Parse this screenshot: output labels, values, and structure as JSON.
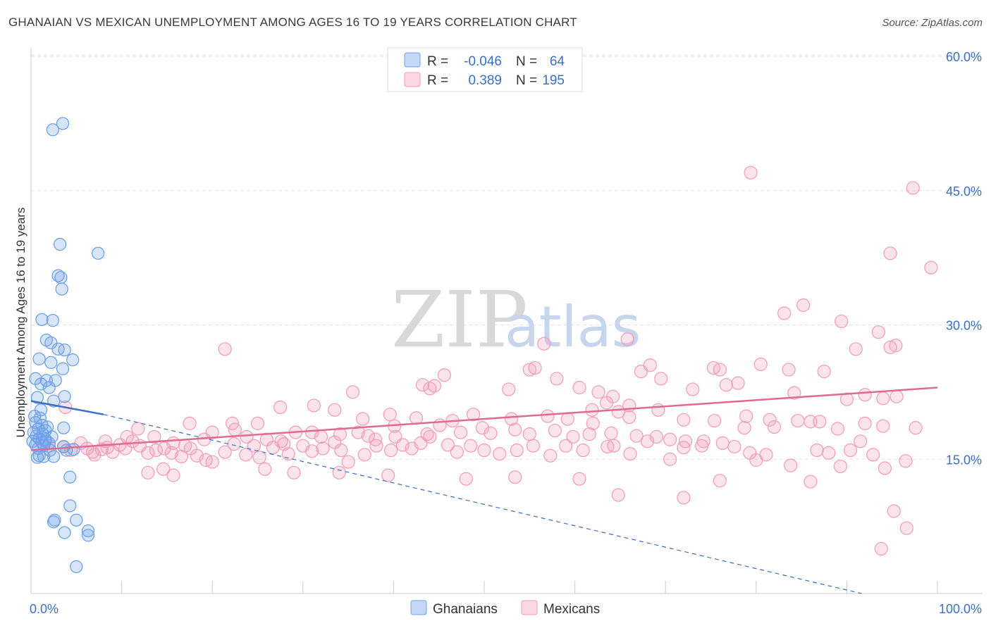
{
  "header": {
    "title": "GHANAIAN VS MEXICAN UNEMPLOYMENT AMONG AGES 16 TO 19 YEARS CORRELATION CHART",
    "source": "Source: ZipAtlas.com"
  },
  "watermark": {
    "zip": "ZIP",
    "atlas": "atlas"
  },
  "legend_top": {
    "rows": [
      {
        "r_label": "R =",
        "r_value": "-0.046",
        "n_label": "N =",
        "n_value": "64"
      },
      {
        "r_label": "R =",
        "r_value": "0.389",
        "n_label": "N =",
        "n_value": "195"
      }
    ]
  },
  "colors": {
    "ghanaian": "#6fa1e8",
    "ghanaian_line": "#3b6fc4",
    "mexican": "#f29ab8",
    "mexican_line": "#e06a94",
    "axis_text": "#3b6fc4",
    "grid": "#e3e3e3"
  },
  "chart_data": {
    "type": "scatter",
    "title": "GHANAIAN VS MEXICAN UNEMPLOYMENT AMONG AGES 16 TO 19 YEARS CORRELATION CHART",
    "xlabel": "",
    "ylabel": "Unemployment Among Ages 16 to 19 years",
    "xlim": [
      0,
      100
    ],
    "ylim": [
      0,
      60
    ],
    "x_tick_labels": [
      "0.0%",
      "100.0%"
    ],
    "y_ticks": [
      15,
      30,
      45,
      60
    ],
    "y_tick_labels": [
      "15.0%",
      "30.0%",
      "45.0%",
      "60.0%"
    ],
    "grid": true,
    "legend": "top-center",
    "series": [
      {
        "name": "Ghanaians",
        "r": -0.046,
        "n": 64,
        "trend_solid": [
          [
            0,
            21.5
          ],
          [
            8,
            20.0
          ]
        ],
        "trend_dashed": [
          [
            8,
            20.0
          ],
          [
            100,
            -2.0
          ]
        ],
        "points": [
          [
            3.5,
            52.5
          ],
          [
            2.4,
            51.8
          ],
          [
            3.2,
            39.0
          ],
          [
            7.4,
            38.0
          ],
          [
            3.0,
            35.5
          ],
          [
            3.3,
            35.3
          ],
          [
            3.4,
            34.0
          ],
          [
            1.2,
            30.6
          ],
          [
            2.4,
            30.5
          ],
          [
            1.7,
            28.3
          ],
          [
            2.2,
            28.0
          ],
          [
            3.0,
            27.3
          ],
          [
            3.7,
            27.2
          ],
          [
            0.9,
            26.2
          ],
          [
            4.6,
            26.1
          ],
          [
            2.2,
            25.8
          ],
          [
            3.5,
            25.1
          ],
          [
            0.5,
            24.0
          ],
          [
            1.7,
            23.8
          ],
          [
            2.7,
            23.8
          ],
          [
            1.1,
            23.4
          ],
          [
            2.0,
            23.0
          ],
          [
            3.7,
            22.0
          ],
          [
            0.7,
            21.9
          ],
          [
            2.5,
            21.5
          ],
          [
            1.1,
            20.5
          ],
          [
            0.4,
            19.8
          ],
          [
            1.0,
            19.6
          ],
          [
            0.5,
            19.1
          ],
          [
            1.2,
            18.8
          ],
          [
            1.8,
            18.6
          ],
          [
            0.8,
            18.4
          ],
          [
            3.6,
            18.5
          ],
          [
            1.6,
            18.2
          ],
          [
            0.3,
            18.0
          ],
          [
            1.3,
            17.8
          ],
          [
            0.6,
            17.6
          ],
          [
            2.3,
            17.5
          ],
          [
            0.9,
            17.3
          ],
          [
            1.6,
            17.2
          ],
          [
            0.2,
            17.0
          ],
          [
            1.2,
            16.9
          ],
          [
            2.0,
            16.8
          ],
          [
            0.5,
            16.6
          ],
          [
            1.4,
            16.5
          ],
          [
            3.6,
            16.4
          ],
          [
            0.8,
            16.2
          ],
          [
            2.1,
            16.0
          ],
          [
            4.7,
            16.1
          ],
          [
            3.9,
            16.0
          ],
          [
            1.4,
            15.3
          ],
          [
            0.7,
            15.2
          ],
          [
            0.9,
            15.4
          ],
          [
            2.5,
            15.3
          ],
          [
            4.3,
            13.0
          ],
          [
            4.3,
            9.8
          ],
          [
            2.6,
            8.2
          ],
          [
            2.5,
            8.0
          ],
          [
            5.0,
            8.2
          ],
          [
            3.7,
            6.8
          ],
          [
            6.3,
            7.0
          ],
          [
            6.3,
            6.5
          ],
          [
            5.0,
            3.0
          ],
          [
            1.6,
            17.0
          ]
        ]
      },
      {
        "name": "Mexicans",
        "r": 0.389,
        "n": 195,
        "trend": [
          [
            0,
            16.0
          ],
          [
            100,
            23.0
          ]
        ],
        "points": [
          [
            79.4,
            47.0
          ],
          [
            97.3,
            45.3
          ],
          [
            94.8,
            38.0
          ],
          [
            99.3,
            36.4
          ],
          [
            83.1,
            31.3
          ],
          [
            85.2,
            32.2
          ],
          [
            89.4,
            30.4
          ],
          [
            93.5,
            29.2
          ],
          [
            65.8,
            28.4
          ],
          [
            56.6,
            27.9
          ],
          [
            21.4,
            27.3
          ],
          [
            94.8,
            27.5
          ],
          [
            95.4,
            27.7
          ],
          [
            91.0,
            27.3
          ],
          [
            68.3,
            25.5
          ],
          [
            75.3,
            25.2
          ],
          [
            76.0,
            25.0
          ],
          [
            80.5,
            25.6
          ],
          [
            83.6,
            25.0
          ],
          [
            87.5,
            24.8
          ],
          [
            55.6,
            25.2
          ],
          [
            55.0,
            25.0
          ],
          [
            58.0,
            24.0
          ],
          [
            67.3,
            24.8
          ],
          [
            69.5,
            24.0
          ],
          [
            45.6,
            24.4
          ],
          [
            44.5,
            23.2
          ],
          [
            43.2,
            23.3
          ],
          [
            44.0,
            22.9
          ],
          [
            35.5,
            22.5
          ],
          [
            52.7,
            22.8
          ],
          [
            60.5,
            23.0
          ],
          [
            62.6,
            22.5
          ],
          [
            64.2,
            22.0
          ],
          [
            73.0,
            22.8
          ],
          [
            76.7,
            23.3
          ],
          [
            78.0,
            23.5
          ],
          [
            84.2,
            22.4
          ],
          [
            90.0,
            21.7
          ],
          [
            92.0,
            22.2
          ],
          [
            94.0,
            21.8
          ],
          [
            95.5,
            22.0
          ],
          [
            63.5,
            21.3
          ],
          [
            66.0,
            21.0
          ],
          [
            64.8,
            20.3
          ],
          [
            61.9,
            20.5
          ],
          [
            31.2,
            21.0
          ],
          [
            33.5,
            20.5
          ],
          [
            27.5,
            20.8
          ],
          [
            25.0,
            19.0
          ],
          [
            36.6,
            19.5
          ],
          [
            39.6,
            20.0
          ],
          [
            42.5,
            19.6
          ],
          [
            46.5,
            19.3
          ],
          [
            48.8,
            20.0
          ],
          [
            53.0,
            19.5
          ],
          [
            57.0,
            19.8
          ],
          [
            59.2,
            19.5
          ],
          [
            62.0,
            19.0
          ],
          [
            66.0,
            19.7
          ],
          [
            69.2,
            20.5
          ],
          [
            72.0,
            19.4
          ],
          [
            75.4,
            19.3
          ],
          [
            78.9,
            19.8
          ],
          [
            81.5,
            19.4
          ],
          [
            87.0,
            19.2
          ],
          [
            92.0,
            19.0
          ],
          [
            94.0,
            18.7
          ],
          [
            97.6,
            18.5
          ],
          [
            22.2,
            19.0
          ],
          [
            17.5,
            19.0
          ],
          [
            10.6,
            17.5
          ],
          [
            11.8,
            18.4
          ],
          [
            13.6,
            17.5
          ],
          [
            15.7,
            16.8
          ],
          [
            17.0,
            16.5
          ],
          [
            19.1,
            17.2
          ],
          [
            20.0,
            18.0
          ],
          [
            22.5,
            18.3
          ],
          [
            23.8,
            17.5
          ],
          [
            26.0,
            17.2
          ],
          [
            27.6,
            17.0
          ],
          [
            29.2,
            18.0
          ],
          [
            31.0,
            18.0
          ],
          [
            32.0,
            17.5
          ],
          [
            34.1,
            17.8
          ],
          [
            36.1,
            18.0
          ],
          [
            37.2,
            17.6
          ],
          [
            38.0,
            17.2
          ],
          [
            40.1,
            18.7
          ],
          [
            41.0,
            16.6
          ],
          [
            43.7,
            17.8
          ],
          [
            45.1,
            18.8
          ],
          [
            47.4,
            18.0
          ],
          [
            49.8,
            18.5
          ],
          [
            50.7,
            17.9
          ],
          [
            53.4,
            18.3
          ],
          [
            55.0,
            17.8
          ],
          [
            57.8,
            18.2
          ],
          [
            59.8,
            17.5
          ],
          [
            61.6,
            17.8
          ],
          [
            64.0,
            17.9
          ],
          [
            66.8,
            17.6
          ],
          [
            68.0,
            17.0
          ],
          [
            70.5,
            17.2
          ],
          [
            72.2,
            17.0
          ],
          [
            74.0,
            16.5
          ],
          [
            76.3,
            16.8
          ],
          [
            78.7,
            18.5
          ],
          [
            82.0,
            18.6
          ],
          [
            84.6,
            19.3
          ],
          [
            86.0,
            19.2
          ],
          [
            89.0,
            18.4
          ],
          [
            91.5,
            17.0
          ],
          [
            2.0,
            16.5
          ],
          [
            3.6,
            16.4
          ],
          [
            4.4,
            16.0
          ],
          [
            5.5,
            16.8
          ],
          [
            6.2,
            16.2
          ],
          [
            6.8,
            15.8
          ],
          [
            7.8,
            16.1
          ],
          [
            8.4,
            16.3
          ],
          [
            9.0,
            15.8
          ],
          [
            9.8,
            16.6
          ],
          [
            10.4,
            16.2
          ],
          [
            11.2,
            17.0
          ],
          [
            12.0,
            16.5
          ],
          [
            12.9,
            15.7
          ],
          [
            13.8,
            16.0
          ],
          [
            14.7,
            16.2
          ],
          [
            15.5,
            15.7
          ],
          [
            16.6,
            15.3
          ],
          [
            17.6,
            16.2
          ],
          [
            18.3,
            15.4
          ],
          [
            19.3,
            14.9
          ],
          [
            20.0,
            14.7
          ],
          [
            21.4,
            15.8
          ],
          [
            22.4,
            16.7
          ],
          [
            23.7,
            15.5
          ],
          [
            24.6,
            16.5
          ],
          [
            25.2,
            15.2
          ],
          [
            26.7,
            16.3
          ],
          [
            27.9,
            16.7
          ],
          [
            28.4,
            15.6
          ],
          [
            30.0,
            16.5
          ],
          [
            31.0,
            15.9
          ],
          [
            32.2,
            16.2
          ],
          [
            33.5,
            16.9
          ],
          [
            34.2,
            16.0
          ],
          [
            35.0,
            14.7
          ],
          [
            36.8,
            15.5
          ],
          [
            38.1,
            16.5
          ],
          [
            39.7,
            16.0
          ],
          [
            40.2,
            17.5
          ],
          [
            42.0,
            16.2
          ],
          [
            43.0,
            16.8
          ],
          [
            46.0,
            16.6
          ],
          [
            47.0,
            15.8
          ],
          [
            48.5,
            16.5
          ],
          [
            50.0,
            16.0
          ],
          [
            51.7,
            15.6
          ],
          [
            53.6,
            16.0
          ],
          [
            55.4,
            16.5
          ],
          [
            57.3,
            15.4
          ],
          [
            59.0,
            16.5
          ],
          [
            60.9,
            16.0
          ],
          [
            63.6,
            16.4
          ],
          [
            64.3,
            16.5
          ],
          [
            66.1,
            15.6
          ],
          [
            69.0,
            17.5
          ],
          [
            70.5,
            15.0
          ],
          [
            72.0,
            16.3
          ],
          [
            74.2,
            17.0
          ],
          [
            77.6,
            16.4
          ],
          [
            79.3,
            15.7
          ],
          [
            81.1,
            15.5
          ],
          [
            83.8,
            14.3
          ],
          [
            86.7,
            16.0
          ],
          [
            88.0,
            15.7
          ],
          [
            90.4,
            16.0
          ],
          [
            92.9,
            15.5
          ],
          [
            94.2,
            14.0
          ],
          [
            96.5,
            14.8
          ],
          [
            3.8,
            20.8
          ],
          [
            7.0,
            15.5
          ],
          [
            8.2,
            17.0
          ],
          [
            12.9,
            13.5
          ],
          [
            14.6,
            13.9
          ],
          [
            15.7,
            13.2
          ],
          [
            25.8,
            13.9
          ],
          [
            29.0,
            13.5
          ],
          [
            34.0,
            13.5
          ],
          [
            39.4,
            13.2
          ],
          [
            48.0,
            12.8
          ],
          [
            53.4,
            13.0
          ],
          [
            60.5,
            12.8
          ],
          [
            64.8,
            11.0
          ],
          [
            72.0,
            10.7
          ],
          [
            76.0,
            12.6
          ],
          [
            86.0,
            12.5
          ],
          [
            89.3,
            14.2
          ],
          [
            95.2,
            9.2
          ],
          [
            96.6,
            7.3
          ],
          [
            93.8,
            5.0
          ],
          [
            80.0,
            14.9
          ],
          [
            44.0,
            17.5
          ]
        ]
      }
    ]
  },
  "bottom_legend": {
    "items": [
      {
        "label": "Ghanaians"
      },
      {
        "label": "Mexicans"
      }
    ]
  }
}
